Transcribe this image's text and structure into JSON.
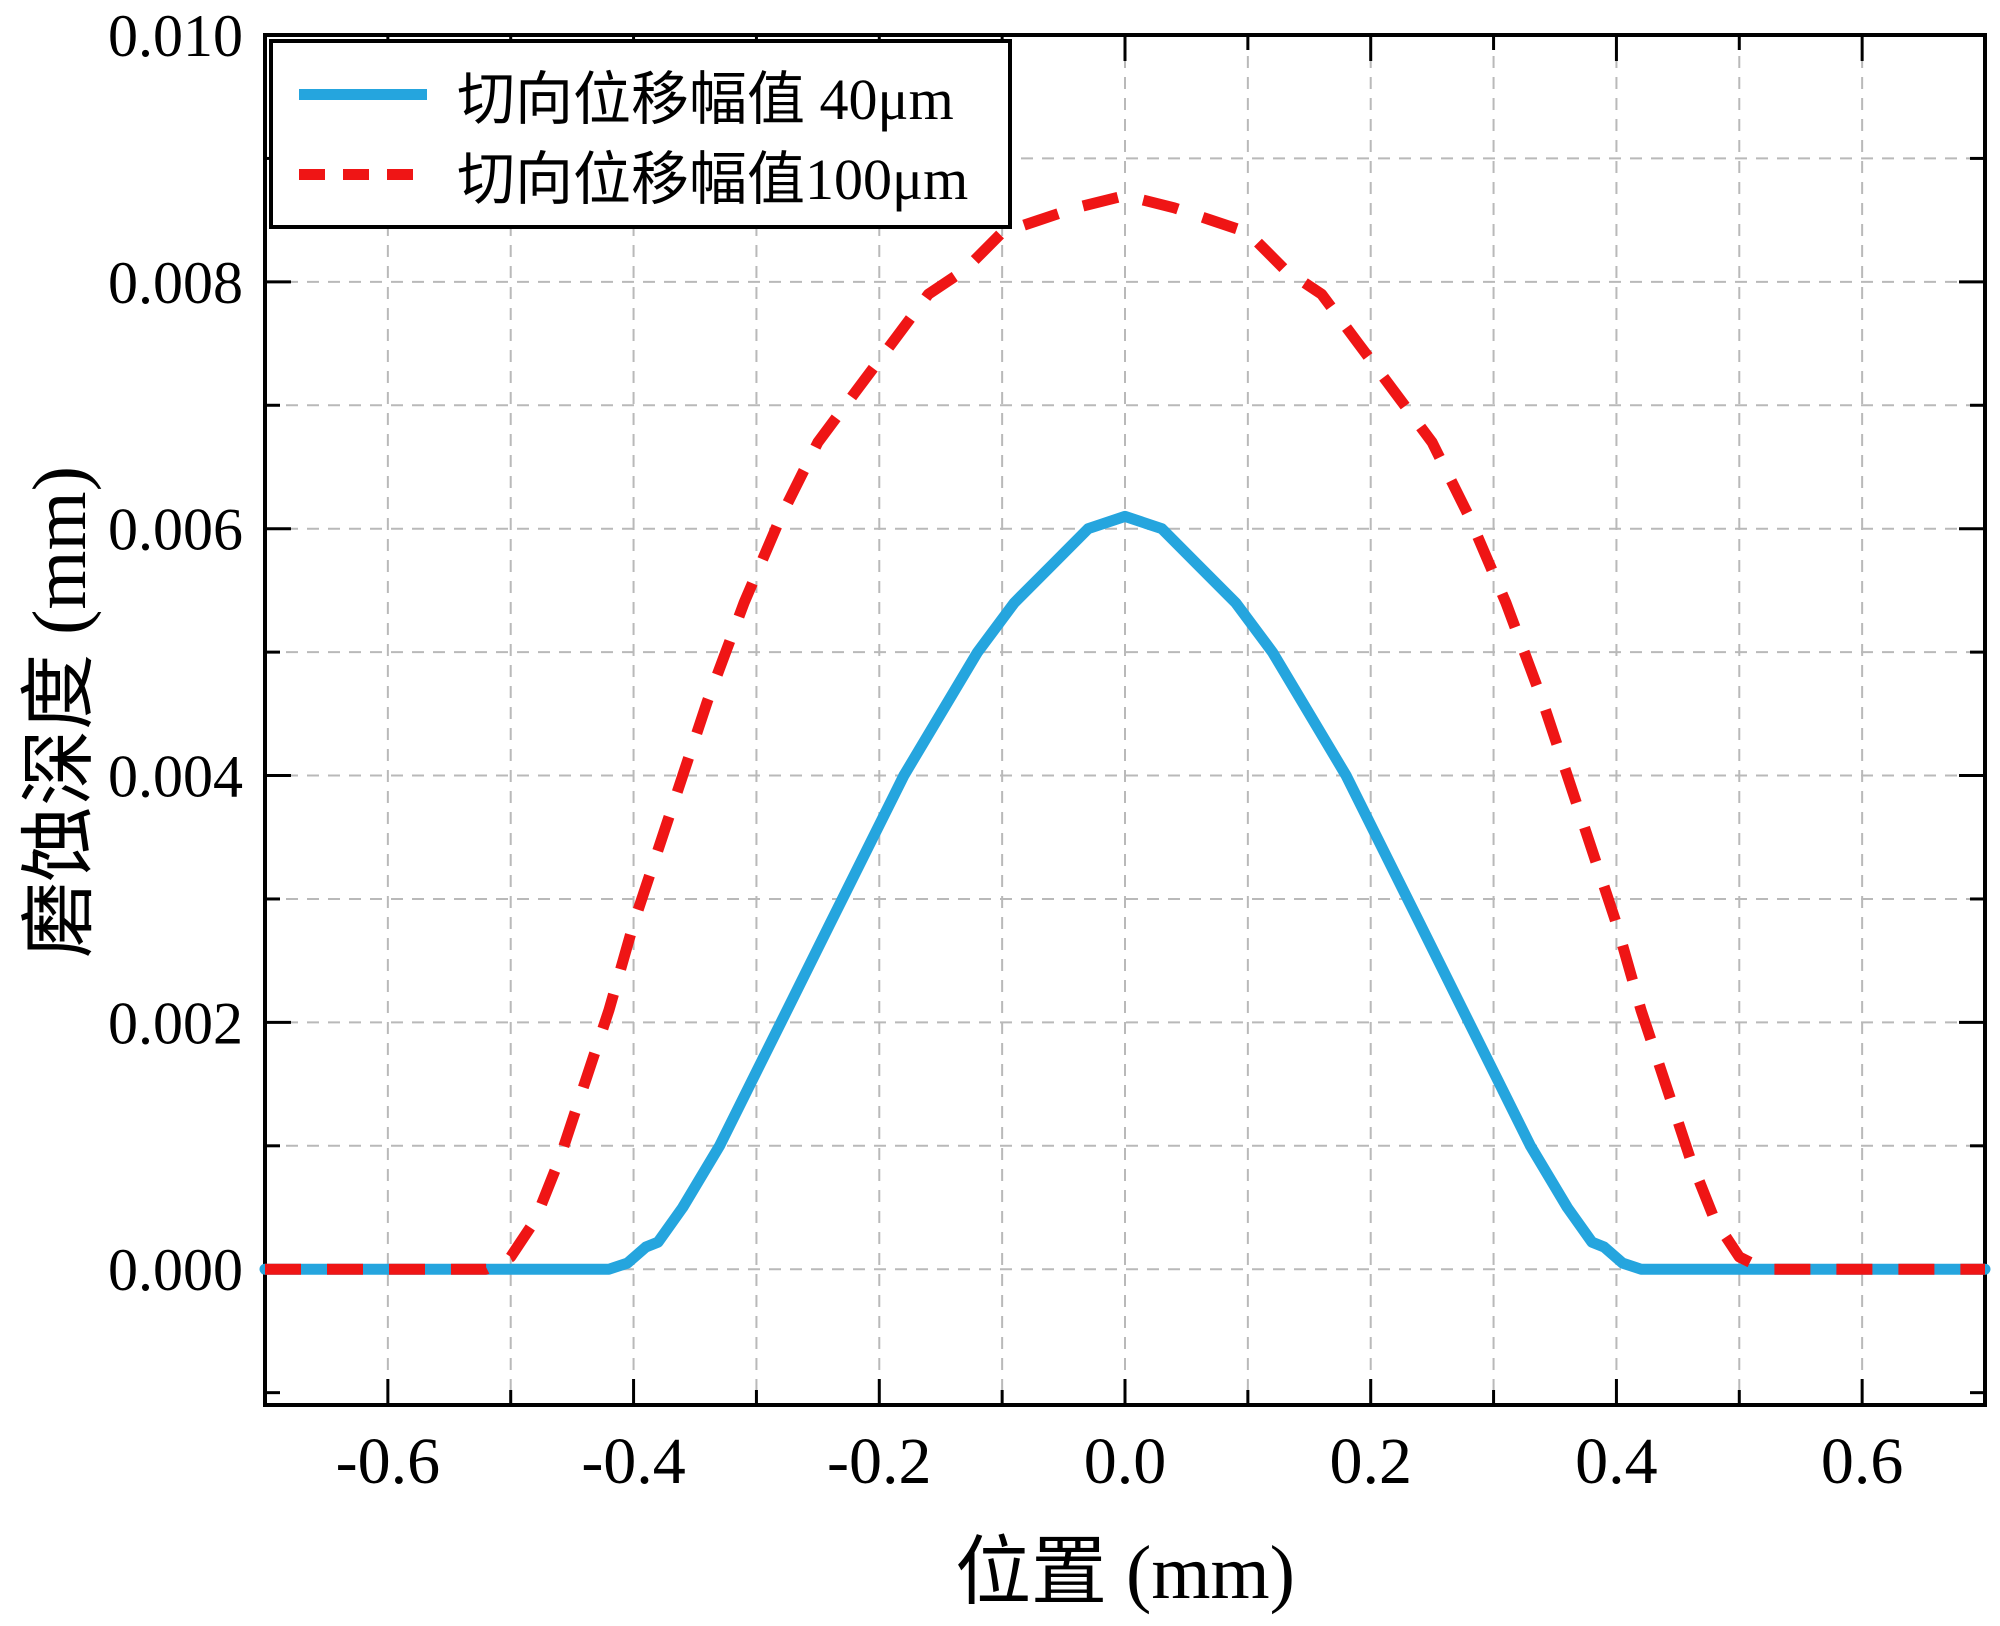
{
  "chart_data": {
    "type": "line",
    "title": "",
    "xlabel": "位置 (mm)",
    "ylabel": "磨蚀深度 (mm)",
    "xlim": [
      -0.7,
      0.7
    ],
    "ylim": [
      -0.0011,
      0.01
    ],
    "x_ticks": [
      -0.6,
      -0.4,
      -0.2,
      0.0,
      0.2,
      0.4,
      0.6
    ],
    "x_tick_labels": [
      "-0.6",
      "-0.4",
      "-0.2",
      "0.0",
      "0.2",
      "0.4",
      "0.6"
    ],
    "y_ticks": [
      0.0,
      0.002,
      0.004,
      0.006,
      0.008,
      0.01
    ],
    "y_tick_labels": [
      "0.000",
      "0.002",
      "0.004",
      "0.006",
      "0.008",
      "0.010"
    ],
    "x_minor_step": 0.1,
    "y_minor_step": 0.001,
    "grid": true,
    "grid_color": "#b9b9b9",
    "frame_color": "#000000",
    "legend_position": "top-left",
    "series": [
      {
        "name": "切向位移幅值 40μm",
        "color": "#25A5DE",
        "style": "solid",
        "points": [
          [
            -0.7,
            0
          ],
          [
            -0.6,
            0
          ],
          [
            -0.5,
            0
          ],
          [
            -0.45,
            0
          ],
          [
            -0.42,
            0
          ],
          [
            -0.405,
            5e-05
          ],
          [
            -0.39,
            0.00018
          ],
          [
            -0.38,
            0.00022
          ],
          [
            -0.36,
            0.0005
          ],
          [
            -0.33,
            0.001
          ],
          [
            -0.3,
            0.0016
          ],
          [
            -0.27,
            0.0022
          ],
          [
            -0.24,
            0.0028
          ],
          [
            -0.21,
            0.0034
          ],
          [
            -0.18,
            0.004
          ],
          [
            -0.15,
            0.0045
          ],
          [
            -0.12,
            0.005
          ],
          [
            -0.09,
            0.0054
          ],
          [
            -0.06,
            0.0057
          ],
          [
            -0.03,
            0.006
          ],
          [
            0.0,
            0.0061
          ],
          [
            0.03,
            0.006
          ],
          [
            0.06,
            0.0057
          ],
          [
            0.09,
            0.0054
          ],
          [
            0.12,
            0.005
          ],
          [
            0.15,
            0.0045
          ],
          [
            0.18,
            0.004
          ],
          [
            0.21,
            0.0034
          ],
          [
            0.24,
            0.0028
          ],
          [
            0.27,
            0.0022
          ],
          [
            0.3,
            0.0016
          ],
          [
            0.33,
            0.001
          ],
          [
            0.36,
            0.0005
          ],
          [
            0.38,
            0.00022
          ],
          [
            0.39,
            0.00018
          ],
          [
            0.405,
            5e-05
          ],
          [
            0.42,
            0
          ],
          [
            0.45,
            0
          ],
          [
            0.5,
            0
          ],
          [
            0.6,
            0
          ],
          [
            0.7,
            0
          ]
        ]
      },
      {
        "name": "切向位移幅值100μm",
        "color": "#EF1515",
        "style": "dashed",
        "points": [
          [
            -0.7,
            0
          ],
          [
            -0.6,
            0
          ],
          [
            -0.52,
            0
          ],
          [
            -0.5,
            0.0001
          ],
          [
            -0.48,
            0.0004
          ],
          [
            -0.46,
            0.0009
          ],
          [
            -0.44,
            0.0015
          ],
          [
            -0.42,
            0.0021
          ],
          [
            -0.4,
            0.0028
          ],
          [
            -0.37,
            0.0037
          ],
          [
            -0.34,
            0.0046
          ],
          [
            -0.31,
            0.0054
          ],
          [
            -0.28,
            0.0061
          ],
          [
            -0.25,
            0.0067
          ],
          [
            -0.22,
            0.0071
          ],
          [
            -0.19,
            0.0075
          ],
          [
            -0.16,
            0.0079
          ],
          [
            -0.13,
            0.0081
          ],
          [
            -0.1,
            0.0084
          ],
          [
            -0.07,
            0.0085
          ],
          [
            -0.04,
            0.0086
          ],
          [
            0.0,
            0.0087
          ],
          [
            0.04,
            0.0086
          ],
          [
            0.07,
            0.0085
          ],
          [
            0.1,
            0.0084
          ],
          [
            0.13,
            0.0081
          ],
          [
            0.16,
            0.0079
          ],
          [
            0.19,
            0.0075
          ],
          [
            0.22,
            0.0071
          ],
          [
            0.25,
            0.0067
          ],
          [
            0.28,
            0.0061
          ],
          [
            0.31,
            0.0054
          ],
          [
            0.34,
            0.0046
          ],
          [
            0.37,
            0.0037
          ],
          [
            0.4,
            0.0028
          ],
          [
            0.42,
            0.0021
          ],
          [
            0.44,
            0.0015
          ],
          [
            0.46,
            0.0009
          ],
          [
            0.48,
            0.0004
          ],
          [
            0.5,
            0.0001
          ],
          [
            0.52,
            0
          ],
          [
            0.6,
            0
          ],
          [
            0.7,
            0
          ]
        ]
      }
    ]
  }
}
